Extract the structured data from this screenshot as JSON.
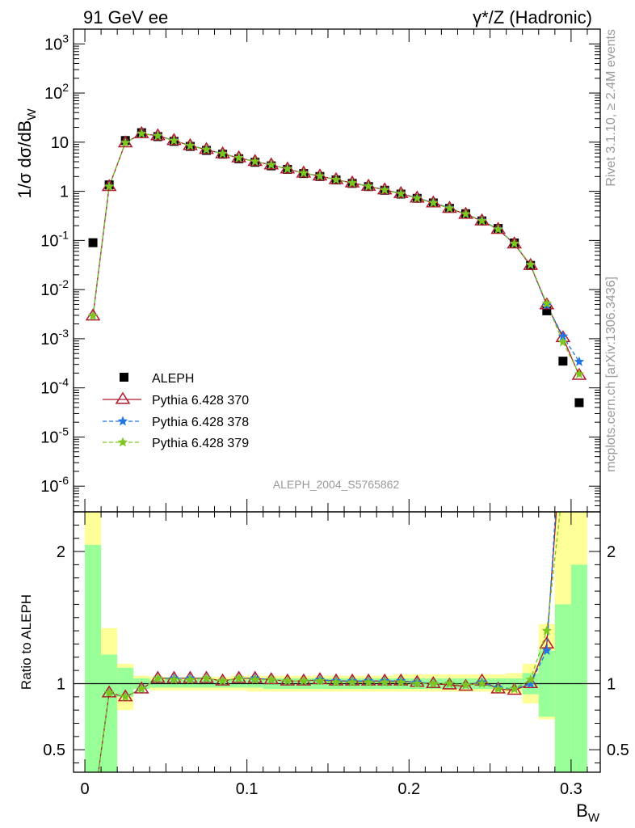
{
  "header": {
    "left": "91 GeV ee",
    "right": "γ*/Z (Hadronic)"
  },
  "side_labels": {
    "top": "Rivet 3.1.10, ≥ 2.4M events",
    "bottom": "mcplots.cern.ch [arXiv:1306.3436]"
  },
  "analysis_label": "ALEPH_2004_S5765862",
  "chart_data": {
    "type": "scatter",
    "xlabel": "B_W",
    "ylabel_main": "1/σ dσ/dB_W",
    "ylabel_ratio": "Ratio to ALEPH",
    "xlim": [
      -0.007,
      0.318
    ],
    "ylim_main": [
      3e-07,
      2000
    ],
    "ylim_ratio": [
      0.33,
      2.3
    ],
    "y_log_main": true,
    "x_ticks": [
      "0",
      "0.1",
      "0.2",
      "0.3"
    ],
    "y_ticks_main": [
      "10^3",
      "10^2",
      "10",
      "1",
      "10^-1",
      "10^-2",
      "10^-3",
      "10^-4",
      "10^-5",
      "10^-6"
    ],
    "y_ticks_ratio": [
      "0.5",
      "1",
      "2"
    ],
    "legend_position": "bottom-left",
    "colors": {
      "aleph": "#000000",
      "p370": "#b0192e",
      "p378": "#1f77e4",
      "p379": "#7cc61f",
      "band_inner": "#99ff99",
      "band_outer": "#ffff99"
    },
    "x": [
      0.005,
      0.015,
      0.025,
      0.035,
      0.045,
      0.055,
      0.065,
      0.075,
      0.085,
      0.095,
      0.105,
      0.115,
      0.125,
      0.135,
      0.145,
      0.155,
      0.165,
      0.175,
      0.185,
      0.195,
      0.205,
      0.215,
      0.225,
      0.235,
      0.245,
      0.255,
      0.265,
      0.275,
      0.285,
      0.295,
      0.305
    ],
    "series": [
      {
        "name": "ALEPH",
        "values": [
          0.09,
          1.35,
          10.8,
          15.6,
          13.0,
          10.4,
          8.2,
          6.8,
          5.7,
          4.6,
          3.9,
          3.3,
          2.8,
          2.3,
          2.0,
          1.7,
          1.45,
          1.25,
          1.05,
          0.88,
          0.72,
          0.58,
          0.45,
          0.35,
          0.25,
          0.175,
          0.089,
          0.031,
          0.0037,
          0.00035,
          5e-05
        ]
      },
      {
        "name": "Pythia 6.428 370",
        "values": [
          0.0029,
          1.25,
          9.7,
          14.9,
          13.5,
          10.8,
          8.5,
          7.1,
          5.8,
          4.8,
          4.05,
          3.45,
          2.85,
          2.35,
          2.05,
          1.73,
          1.48,
          1.27,
          1.07,
          0.9,
          0.73,
          0.58,
          0.45,
          0.34,
          0.25,
          0.168,
          0.085,
          0.031,
          0.0049,
          0.00105,
          0.00018
        ],
        "ratio": [
          0.032,
          0.93,
          0.9,
          0.96,
          1.04,
          1.04,
          1.04,
          1.04,
          1.02,
          1.04,
          1.04,
          1.03,
          1.02,
          1.02,
          1.03,
          1.02,
          1.02,
          1.02,
          1.02,
          1.02,
          1.01,
          1.0,
          0.99,
          0.98,
          1.02,
          0.96,
          0.95,
          1.0,
          1.3,
          3.0,
          3.6
        ]
      },
      {
        "name": "Pythia 6.428 378",
        "values": [
          0.0029,
          1.26,
          9.8,
          15.0,
          13.5,
          10.8,
          8.5,
          7.1,
          5.85,
          4.8,
          4.05,
          3.45,
          2.86,
          2.35,
          2.05,
          1.73,
          1.48,
          1.27,
          1.07,
          0.9,
          0.73,
          0.59,
          0.46,
          0.345,
          0.255,
          0.17,
          0.086,
          0.032,
          0.0048,
          0.00112,
          0.00034
        ],
        "ratio": [
          0.032,
          0.93,
          0.9,
          0.96,
          1.04,
          1.04,
          1.04,
          1.04,
          1.02,
          1.04,
          1.04,
          1.03,
          1.02,
          1.02,
          1.03,
          1.02,
          1.02,
          1.02,
          1.02,
          1.02,
          1.01,
          1.0,
          1.0,
          0.99,
          1.01,
          0.97,
          0.96,
          1.0,
          1.25,
          3.2,
          6.8
        ]
      },
      {
        "name": "Pythia 6.428 379",
        "values": [
          0.0029,
          1.25,
          9.7,
          14.9,
          13.4,
          10.7,
          8.45,
          7.05,
          5.8,
          4.78,
          4.03,
          3.44,
          2.85,
          2.34,
          2.04,
          1.72,
          1.47,
          1.26,
          1.06,
          0.89,
          0.72,
          0.58,
          0.45,
          0.345,
          0.25,
          0.168,
          0.086,
          0.032,
          0.0052,
          0.00085,
          0.00019
        ],
        "ratio": [
          0.032,
          0.93,
          0.9,
          0.96,
          1.04,
          1.03,
          1.03,
          1.04,
          1.02,
          1.04,
          1.03,
          1.03,
          1.02,
          1.02,
          1.02,
          1.01,
          1.01,
          1.01,
          1.01,
          1.01,
          1.0,
          1.0,
          1.0,
          0.99,
          1.0,
          0.96,
          0.96,
          1.03,
          1.4,
          2.5,
          3.8
        ]
      }
    ],
    "band_inner": [
      [
        2.05,
        0.33
      ],
      [
        1.22,
        0.33
      ],
      [
        1.12,
        0.9
      ],
      [
        1.04,
        0.96
      ],
      [
        1.03,
        0.97
      ],
      [
        1.03,
        0.97
      ],
      [
        1.03,
        0.97
      ],
      [
        1.03,
        0.97
      ],
      [
        1.03,
        0.97
      ],
      [
        1.03,
        0.97
      ],
      [
        1.03,
        0.97
      ],
      [
        1.04,
        0.96
      ],
      [
        1.04,
        0.96
      ],
      [
        1.04,
        0.96
      ],
      [
        1.04,
        0.96
      ],
      [
        1.04,
        0.96
      ],
      [
        1.04,
        0.96
      ],
      [
        1.04,
        0.96
      ],
      [
        1.04,
        0.96
      ],
      [
        1.04,
        0.96
      ],
      [
        1.04,
        0.96
      ],
      [
        1.04,
        0.96
      ],
      [
        1.04,
        0.96
      ],
      [
        1.04,
        0.96
      ],
      [
        1.04,
        0.96
      ],
      [
        1.04,
        0.96
      ],
      [
        1.04,
        0.96
      ],
      [
        1.08,
        0.92
      ],
      [
        1.25,
        0.75
      ],
      [
        1.6,
        0.33
      ],
      [
        1.9,
        0.33
      ]
    ],
    "band_outer": [
      [
        2.3,
        0.33
      ],
      [
        1.42,
        0.33
      ],
      [
        1.15,
        0.8
      ],
      [
        1.06,
        0.96
      ],
      [
        1.05,
        0.95
      ],
      [
        1.05,
        0.95
      ],
      [
        1.05,
        0.95
      ],
      [
        1.05,
        0.95
      ],
      [
        1.05,
        0.95
      ],
      [
        1.06,
        0.95
      ],
      [
        1.06,
        0.94
      ],
      [
        1.06,
        0.94
      ],
      [
        1.06,
        0.94
      ],
      [
        1.06,
        0.94
      ],
      [
        1.06,
        0.94
      ],
      [
        1.06,
        0.94
      ],
      [
        1.06,
        0.94
      ],
      [
        1.06,
        0.94
      ],
      [
        1.06,
        0.94
      ],
      [
        1.07,
        0.94
      ],
      [
        1.07,
        0.94
      ],
      [
        1.07,
        0.94
      ],
      [
        1.07,
        0.94
      ],
      [
        1.07,
        0.94
      ],
      [
        1.07,
        0.94
      ],
      [
        1.07,
        0.93
      ],
      [
        1.08,
        0.92
      ],
      [
        1.15,
        0.85
      ],
      [
        1.45,
        0.73
      ],
      [
        2.3,
        0.33
      ],
      [
        2.3,
        0.33
      ]
    ]
  }
}
